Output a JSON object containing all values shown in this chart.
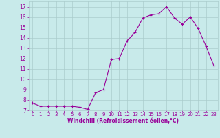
{
  "x": [
    0,
    1,
    2,
    3,
    4,
    5,
    6,
    7,
    8,
    9,
    10,
    11,
    12,
    13,
    14,
    15,
    16,
    17,
    18,
    19,
    20,
    21,
    22,
    23
  ],
  "y": [
    7.7,
    7.4,
    7.4,
    7.4,
    7.4,
    7.4,
    7.3,
    7.1,
    8.7,
    9.0,
    11.9,
    12.0,
    13.7,
    14.5,
    15.9,
    16.2,
    16.3,
    17.0,
    15.9,
    15.3,
    16.0,
    14.9,
    13.2,
    11.3
  ],
  "xlabel": "Windchill (Refroidissement éolien,°C)",
  "xlim": [
    -0.5,
    23.5
  ],
  "ylim": [
    7.0,
    17.5
  ],
  "yticks": [
    7,
    8,
    9,
    10,
    11,
    12,
    13,
    14,
    15,
    16,
    17
  ],
  "xticks": [
    0,
    1,
    2,
    3,
    4,
    5,
    6,
    7,
    8,
    9,
    10,
    11,
    12,
    13,
    14,
    15,
    16,
    17,
    18,
    19,
    20,
    21,
    22,
    23
  ],
  "line_color": "#990099",
  "marker": "+",
  "bg_color": "#c8eaea",
  "grid_color": "#aacccc",
  "tick_color": "#990099",
  "label_color": "#990099"
}
